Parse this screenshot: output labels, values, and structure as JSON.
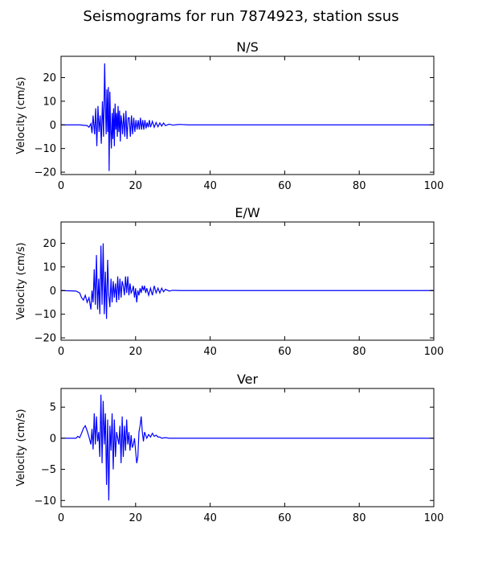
{
  "figure": {
    "title": "Seismograms for run 7874923, station ssus"
  },
  "chart_data": [
    {
      "type": "line",
      "title": "N/S",
      "xlabel": "",
      "ylabel": "Velocity (cm/s)",
      "xlim": [
        0,
        100
      ],
      "ylim": [
        -21,
        29
      ],
      "xticks": [
        0,
        20,
        40,
        60,
        80,
        100
      ],
      "yticks": [
        -20,
        -10,
        0,
        10,
        20
      ],
      "grid": false,
      "series": [
        {
          "color": "#0000ff",
          "x": [
            0,
            5,
            7,
            7.5,
            8,
            8.3,
            8.6,
            9.0,
            9.3,
            9.6,
            9.9,
            10.2,
            10.5,
            10.8,
            11.1,
            11.4,
            11.7,
            11.9,
            12.1,
            12.3,
            12.5,
            12.7,
            12.9,
            13.1,
            13.3,
            13.5,
            13.7,
            13.9,
            14.1,
            14.3,
            14.5,
            14.7,
            14.9,
            15.1,
            15.3,
            15.5,
            15.7,
            15.9,
            16.1,
            16.3,
            16.5,
            16.8,
            17.1,
            17.4,
            17.7,
            18.0,
            18.3,
            18.6,
            18.9,
            19.2,
            19.5,
            19.8,
            20.1,
            20.4,
            20.7,
            21.0,
            21.3,
            21.6,
            21.9,
            22.2,
            22.5,
            22.8,
            23.1,
            23.4,
            23.7,
            24.0,
            24.5,
            25.0,
            25.5,
            26.0,
            26.5,
            27.0,
            27.5,
            28.0,
            29.0,
            30.0,
            31.0,
            32.0,
            34.0,
            40.0,
            60.0,
            80.0,
            100.0
          ],
          "y": [
            0,
            0,
            -0.3,
            -1,
            0.5,
            -3.5,
            4,
            -4,
            7,
            -9,
            8,
            -3,
            4,
            -8,
            10,
            -5,
            26,
            8,
            -4,
            15,
            -3,
            16,
            -19.5,
            14,
            -2,
            -10,
            5,
            -6,
            7,
            -9,
            9,
            -2,
            5,
            -5,
            8,
            -3,
            6,
            -7,
            4,
            1,
            -4,
            5,
            -5,
            6,
            -6,
            3,
            3,
            -5,
            4,
            -4,
            3,
            -3,
            2,
            -2,
            2,
            -2,
            3,
            -2,
            2,
            -2,
            2,
            -1.5,
            1,
            -1,
            2,
            -1,
            1.5,
            -1,
            1,
            -0.8,
            0.8,
            -0.5,
            0.8,
            -0.3,
            0.3,
            -0.1,
            0.1,
            0.2,
            0,
            0,
            0,
            0,
            0
          ]
        }
      ]
    },
    {
      "type": "line",
      "title": "E/W",
      "xlabel": "",
      "ylabel": "Velocity (cm/s)",
      "xlim": [
        0,
        100
      ],
      "ylim": [
        -21,
        29
      ],
      "xticks": [
        0,
        20,
        40,
        60,
        80,
        100
      ],
      "yticks": [
        -20,
        -10,
        0,
        10,
        20
      ],
      "grid": false,
      "series": [
        {
          "color": "#0000ff",
          "x": [
            0,
            4,
            5,
            5.5,
            6.0,
            6.5,
            7.0,
            7.5,
            8.0,
            8.3,
            8.6,
            8.9,
            9.2,
            9.5,
            9.8,
            10.1,
            10.4,
            10.7,
            11.0,
            11.3,
            11.6,
            11.9,
            12.2,
            12.5,
            12.8,
            13.1,
            13.4,
            13.7,
            14.0,
            14.3,
            14.6,
            14.9,
            15.2,
            15.5,
            15.8,
            16.1,
            16.4,
            16.7,
            17.0,
            17.3,
            17.6,
            17.9,
            18.2,
            18.5,
            18.8,
            19.1,
            19.4,
            19.7,
            20.0,
            20.3,
            20.6,
            20.9,
            21.2,
            21.5,
            21.8,
            22.1,
            22.4,
            22.7,
            23.0,
            23.5,
            24.0,
            24.5,
            25.0,
            25.5,
            26.0,
            26.5,
            27.0,
            27.5,
            28.0,
            29.0,
            30.0,
            32.0,
            40.0,
            60.0,
            80.0,
            100.0
          ],
          "y": [
            0,
            -0.2,
            -1,
            -3,
            -4,
            -2,
            -5,
            -3,
            -8,
            0,
            -5,
            9,
            -6,
            15,
            -8,
            5,
            -10,
            19,
            -6,
            20,
            -10,
            8,
            -12,
            13,
            -2,
            -7,
            5,
            -5,
            4,
            -3,
            3,
            -5,
            6,
            -4,
            5,
            -3,
            4,
            2,
            -2,
            6,
            -1,
            6,
            -2,
            3,
            -1,
            0,
            2,
            -3,
            1,
            -5,
            0,
            -2,
            1,
            -1,
            2,
            0,
            2,
            -1,
            1,
            -2,
            1,
            -2,
            2,
            -1,
            1,
            -1,
            1,
            -0.5,
            0.5,
            -0.2,
            0.1,
            0,
            0,
            0,
            0,
            0
          ]
        }
      ]
    },
    {
      "type": "line",
      "title": "Ver",
      "xlabel": "",
      "ylabel": "Velocity (cm/s)",
      "xlim": [
        0,
        100
      ],
      "ylim": [
        -11,
        8
      ],
      "xticks": [
        0,
        20,
        40,
        60,
        80,
        100
      ],
      "yticks": [
        -10,
        -5,
        0,
        5
      ],
      "grid": false,
      "series": [
        {
          "color": "#0000ff",
          "x": [
            0,
            4,
            4.5,
            5.0,
            5.5,
            6.0,
            6.5,
            7.0,
            7.5,
            8.0,
            8.3,
            8.6,
            8.9,
            9.2,
            9.5,
            9.8,
            10.1,
            10.4,
            10.7,
            11.0,
            11.3,
            11.6,
            11.9,
            12.2,
            12.5,
            12.8,
            13.1,
            13.4,
            13.7,
            14.0,
            14.3,
            14.6,
            14.9,
            15.2,
            15.5,
            15.8,
            16.1,
            16.4,
            16.7,
            17.0,
            17.3,
            17.6,
            17.9,
            18.2,
            18.5,
            18.8,
            19.1,
            19.4,
            19.7,
            20.0,
            20.3,
            20.6,
            20.9,
            21.2,
            21.5,
            21.8,
            22.1,
            22.4,
            22.7,
            23.0,
            23.5,
            24.0,
            24.5,
            25.0,
            25.5,
            26.0,
            26.5,
            27.0,
            28.0,
            29.0,
            30.0,
            32.0,
            40.0,
            60.0,
            80.0,
            100.0
          ],
          "y": [
            0,
            0,
            0.3,
            0.1,
            0.8,
            1.6,
            2.0,
            1.2,
            0.2,
            -1,
            1.5,
            -1.8,
            4,
            -1,
            3.5,
            -0.5,
            1,
            -3,
            7,
            -4,
            6,
            -1,
            4,
            -7.5,
            3,
            -10,
            2,
            -2,
            4,
            -5,
            3,
            -3,
            1,
            0,
            -1,
            2,
            -4,
            3.5,
            -3,
            2,
            -2,
            3,
            -1,
            1,
            -2,
            0.5,
            -1.5,
            -1,
            0,
            -2,
            -4,
            -3,
            1,
            2,
            3.5,
            1,
            -0.5,
            1,
            0.5,
            0,
            0.6,
            0.2,
            0.8,
            0.3,
            0.5,
            0.2,
            0.2,
            0,
            0.1,
            0,
            0,
            0,
            0,
            0,
            0,
            0
          ]
        }
      ]
    }
  ]
}
